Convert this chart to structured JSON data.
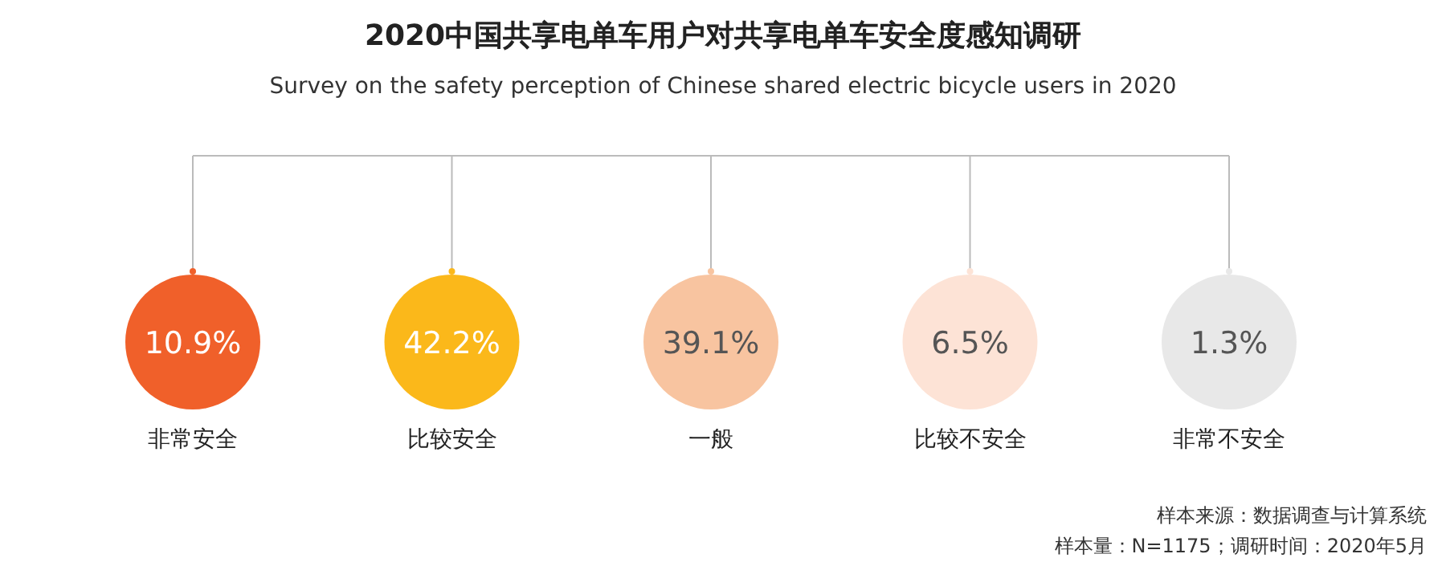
{
  "chart_data": {
    "type": "other",
    "title": "2020中国共享电单车用户对共享电单车安全度感知调研",
    "subtitle": "Survey on the safety perception of Chinese shared electric bicycle users in 2020",
    "categories": [
      "非常安全",
      "比较安全",
      "一般",
      "比较不安全",
      "非常不安全"
    ],
    "values": [
      10.9,
      42.2,
      39.1,
      6.5,
      1.3
    ],
    "value_labels": [
      "10.9%",
      "42.2%",
      "39.1%",
      "6.5%",
      "1.3%"
    ],
    "colors": [
      "#f0602a",
      "#fbb81a",
      "#f8c4a0",
      "#fde3d6",
      "#e8e8e8"
    ],
    "annotations": [
      "样本来源：数据调查与计算系统",
      "样本量：N=1175；调研时间：2020年5月"
    ]
  }
}
